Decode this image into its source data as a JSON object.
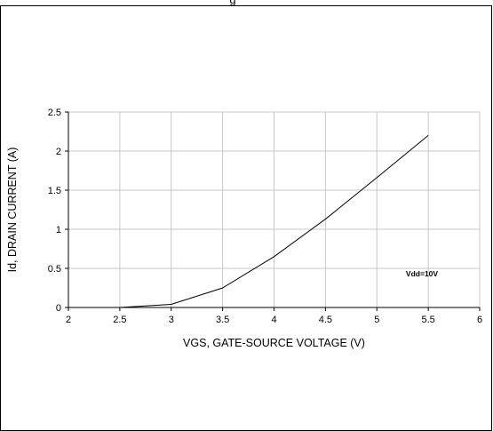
{
  "header": {
    "title_fragment": "g"
  },
  "chart_data": {
    "type": "line",
    "title": "",
    "xlabel": "VGS, GATE-SOURCE VOLTAGE (V)",
    "ylabel": "Id, DRAIN CURRENT (A)",
    "xlim": [
      2,
      6
    ],
    "ylim": [
      0,
      2.5
    ],
    "x_ticks": [
      "2",
      "2.5",
      "3",
      "3.5",
      "4",
      "4.5",
      "5",
      "5.5",
      "6"
    ],
    "y_ticks": [
      "0",
      "0.5",
      "1",
      "1.5",
      "2",
      "2.5"
    ],
    "grid": true,
    "annotation": "Vdd=10V",
    "series": [
      {
        "color": "#000000",
        "x": [
          2.5,
          3.0,
          3.5,
          4.0,
          4.5,
          5.0,
          5.5
        ],
        "y": [
          0.0,
          0.04,
          0.25,
          0.65,
          1.13,
          1.66,
          2.2
        ]
      }
    ]
  }
}
